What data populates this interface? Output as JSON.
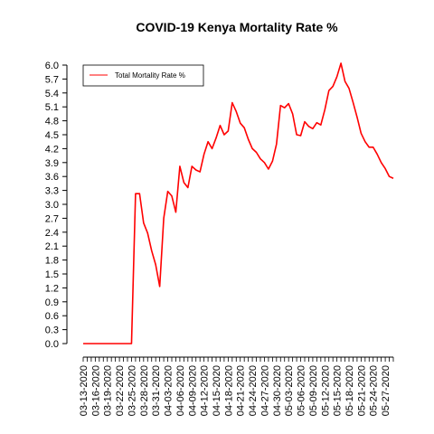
{
  "chart_data": {
    "type": "line",
    "title": "COVID-19 Kenya Mortality Rate %",
    "xlabel": "",
    "ylabel": "",
    "ylim": [
      0,
      6.0
    ],
    "yticks": [
      0.0,
      0.3,
      0.6,
      0.9,
      1.2,
      1.5,
      1.8,
      2.1,
      2.4,
      2.7,
      3.0,
      3.3,
      3.6,
      3.9,
      4.2,
      4.5,
      4.8,
      5.1,
      5.4,
      5.7,
      6.0
    ],
    "ytick_labels": [
      "0.0",
      "0.3",
      "0.6",
      "0.9",
      "1.2",
      "1.5",
      "1.8",
      "2.1",
      "2.4",
      "2.7",
      "3.0",
      "3.3",
      "3.6",
      "3.9",
      "4.2",
      "4.5",
      "4.8",
      "5.1",
      "5.4",
      "5.7",
      "6.0"
    ],
    "xtick_labels": [
      "03-13-2020",
      "03-16-2020",
      "03-19-2020",
      "03-22-2020",
      "03-25-2020",
      "03-28-2020",
      "03-31-2020",
      "04-03-2020",
      "04-06-2020",
      "04-09-2020",
      "04-12-2020",
      "04-15-2020",
      "04-18-2020",
      "04-21-2020",
      "04-24-2020",
      "04-27-2020",
      "04-30-2020",
      "05-03-2020",
      "05-06-2020",
      "05-09-2020",
      "05-12-2020",
      "05-15-2020",
      "05-18-2020",
      "05-21-2020",
      "05-24-2020",
      "05-27-2020"
    ],
    "x_start": "03-13-2020",
    "x_end": "05-30-2020",
    "grid": false,
    "legend_position": "top-left",
    "series": [
      {
        "name": "Total Mortality Rate %",
        "color": "#ff0000",
        "values": [
          0,
          0,
          0,
          0,
          0,
          0,
          0,
          0,
          0,
          0,
          0,
          0,
          0,
          3.23,
          3.23,
          2.6,
          2.38,
          2.0,
          1.7,
          1.23,
          2.7,
          3.28,
          3.18,
          2.83,
          3.82,
          3.47,
          3.36,
          3.82,
          3.74,
          3.7,
          4.08,
          4.35,
          4.2,
          4.43,
          4.7,
          4.5,
          4.58,
          5.19,
          5.0,
          4.75,
          4.65,
          4.4,
          4.2,
          4.12,
          3.98,
          3.9,
          3.76,
          3.93,
          4.3,
          5.13,
          5.08,
          5.17,
          4.95,
          4.5,
          4.48,
          4.78,
          4.68,
          4.63,
          4.76,
          4.71,
          5.04,
          5.45,
          5.54,
          5.75,
          6.04,
          5.65,
          5.5,
          5.2,
          4.88,
          4.53,
          4.35,
          4.23,
          4.23,
          4.08,
          3.9,
          3.77,
          3.6,
          3.56
        ]
      }
    ]
  }
}
